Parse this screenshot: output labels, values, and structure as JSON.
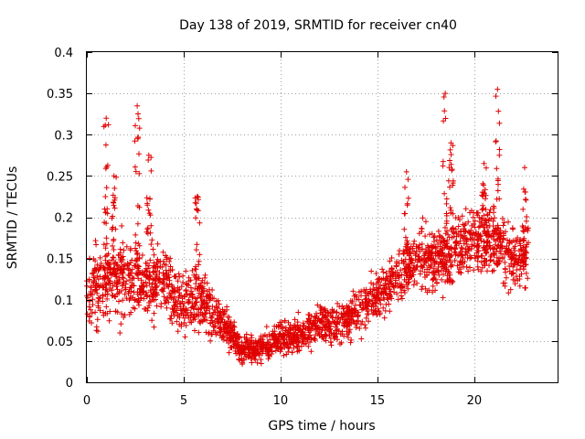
{
  "chart_data": {
    "type": "scatter",
    "title": "Day 138 of 2019, SRMTID for receiver cn40",
    "xlabel": "GPS time / hours",
    "ylabel": "SRMTID / TECUs",
    "xlim": [
      0,
      24.3
    ],
    "ylim": [
      0,
      0.4
    ],
    "xticks": [
      0,
      5,
      10,
      15,
      20
    ],
    "xtick_labels": [
      "0",
      "5",
      "10",
      "15",
      "20"
    ],
    "yticks": [
      0,
      0.05,
      0.1,
      0.15,
      0.2,
      0.25,
      0.3,
      0.35,
      0.4
    ],
    "ytick_labels": [
      "0",
      "0.05",
      "0.1",
      "0.15",
      "0.2",
      "0.25",
      "0.3",
      "0.35",
      "0.4"
    ],
    "grid": true,
    "marker": "+",
    "color": "#e00000",
    "trend": {
      "x": [
        0,
        1,
        2,
        3,
        4,
        5,
        6,
        7,
        8,
        9,
        10,
        11,
        12,
        13,
        14,
        15,
        16,
        17,
        18,
        19,
        20,
        21,
        22,
        22.8
      ],
      "y": [
        0.11,
        0.12,
        0.125,
        0.12,
        0.125,
        0.09,
        0.1,
        0.07,
        0.04,
        0.04,
        0.055,
        0.055,
        0.07,
        0.075,
        0.085,
        0.105,
        0.125,
        0.15,
        0.15,
        0.16,
        0.17,
        0.175,
        0.15,
        0.15
      ]
    },
    "spread": {
      "x": [
        0,
        1,
        2,
        3,
        4,
        5,
        6,
        7,
        8,
        9,
        10,
        11,
        12,
        13,
        14,
        15,
        16,
        17,
        18,
        19,
        20,
        21,
        22,
        22.8
      ],
      "y": [
        0.05,
        0.055,
        0.06,
        0.055,
        0.05,
        0.045,
        0.045,
        0.03,
        0.02,
        0.02,
        0.025,
        0.025,
        0.03,
        0.03,
        0.035,
        0.035,
        0.04,
        0.045,
        0.045,
        0.045,
        0.05,
        0.055,
        0.045,
        0.045
      ]
    },
    "spikes": [
      {
        "x": 1.0,
        "ymin": 0.14,
        "ymax": 0.32
      },
      {
        "x": 1.4,
        "ymin": 0.13,
        "ymax": 0.25
      },
      {
        "x": 2.6,
        "ymin": 0.13,
        "ymax": 0.335
      },
      {
        "x": 3.2,
        "ymin": 0.12,
        "ymax": 0.275
      },
      {
        "x": 5.7,
        "ymin": 0.1,
        "ymax": 0.225
      },
      {
        "x": 16.5,
        "ymin": 0.12,
        "ymax": 0.255
      },
      {
        "x": 18.5,
        "ymin": 0.1,
        "ymax": 0.35
      },
      {
        "x": 18.8,
        "ymin": 0.12,
        "ymax": 0.29
      },
      {
        "x": 20.5,
        "ymin": 0.14,
        "ymax": 0.265
      },
      {
        "x": 21.2,
        "ymin": 0.14,
        "ymax": 0.355
      },
      {
        "x": 22.6,
        "ymin": 0.14,
        "ymax": 0.26
      }
    ],
    "n_points": 2400
  }
}
